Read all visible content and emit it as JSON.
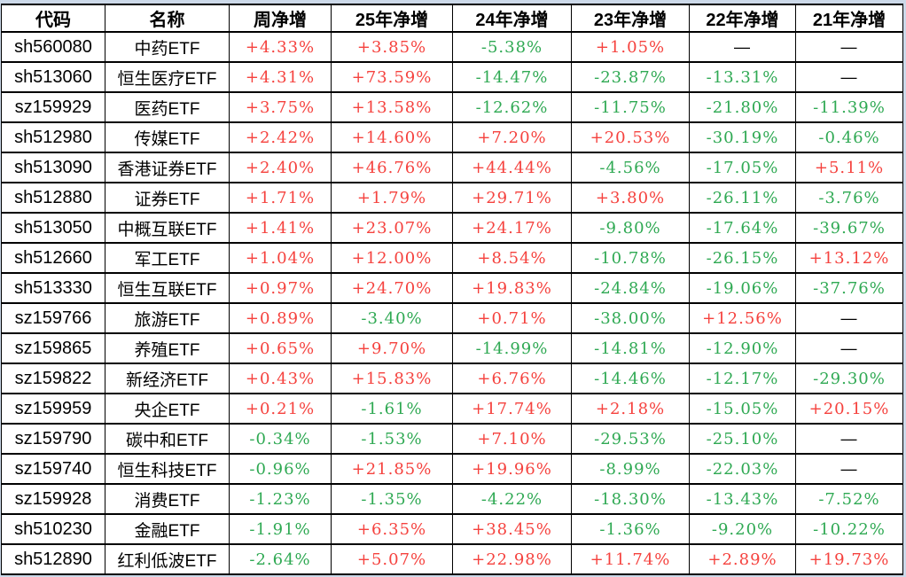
{
  "colors": {
    "positive": "#f5423e",
    "negative": "#2fa953",
    "missing_dash": "#000000",
    "border": "#000000",
    "surround": "#ccd9e9",
    "cell_background": "#ffffff"
  },
  "table": {
    "headers": [
      "代码",
      "名称",
      "周净增",
      "25年净增",
      "24年净增",
      "23年净增",
      "22年净增",
      "21年净增"
    ],
    "missing_symbol": "—",
    "rows": [
      {
        "code": "sh560080",
        "name": "中药ETF",
        "values": [
          "+4.33%",
          "+3.85%",
          "-5.38%",
          "+1.05%",
          "—",
          "—"
        ]
      },
      {
        "code": "sh513060",
        "name": "恒生医疗ETF",
        "values": [
          "+4.31%",
          "+73.59%",
          "-14.47%",
          "-23.87%",
          "-13.31%",
          "—"
        ]
      },
      {
        "code": "sz159929",
        "name": "医药ETF",
        "values": [
          "+3.75%",
          "+13.58%",
          "-12.62%",
          "-11.75%",
          "-21.80%",
          "-11.39%"
        ]
      },
      {
        "code": "sh512980",
        "name": "传媒ETF",
        "values": [
          "+2.42%",
          "+14.60%",
          "+7.20%",
          "+20.53%",
          "-30.19%",
          "-0.46%"
        ]
      },
      {
        "code": "sh513090",
        "name": "香港证券ETF",
        "values": [
          "+2.40%",
          "+46.76%",
          "+44.44%",
          "-4.56%",
          "-17.05%",
          "+5.11%"
        ]
      },
      {
        "code": "sh512880",
        "name": "证券ETF",
        "values": [
          "+1.71%",
          "+1.79%",
          "+29.71%",
          "+3.80%",
          "-26.11%",
          "-3.76%"
        ]
      },
      {
        "code": "sh513050",
        "name": "中概互联ETF",
        "values": [
          "+1.41%",
          "+23.07%",
          "+24.17%",
          "-9.80%",
          "-17.64%",
          "-39.67%"
        ]
      },
      {
        "code": "sh512660",
        "name": "军工ETF",
        "values": [
          "+1.04%",
          "+12.00%",
          "+8.54%",
          "-10.78%",
          "-26.15%",
          "+13.12%"
        ]
      },
      {
        "code": "sh513330",
        "name": "恒生互联ETF",
        "values": [
          "+0.97%",
          "+24.70%",
          "+19.83%",
          "-24.84%",
          "-19.06%",
          "-37.76%"
        ]
      },
      {
        "code": "sz159766",
        "name": "旅游ETF",
        "values": [
          "+0.89%",
          "-3.40%",
          "+0.71%",
          "-38.00%",
          "+12.56%",
          "—"
        ]
      },
      {
        "code": "sz159865",
        "name": "养殖ETF",
        "values": [
          "+0.65%",
          "+9.70%",
          "-14.99%",
          "-14.81%",
          "-12.90%",
          "—"
        ]
      },
      {
        "code": "sz159822",
        "name": "新经济ETF",
        "values": [
          "+0.43%",
          "+15.83%",
          "+6.76%",
          "-14.46%",
          "-12.17%",
          "-29.30%"
        ]
      },
      {
        "code": "sz159959",
        "name": "央企ETF",
        "values": [
          "+0.21%",
          "-1.61%",
          "+17.74%",
          "+2.18%",
          "-15.05%",
          "+20.15%"
        ]
      },
      {
        "code": "sz159790",
        "name": "碳中和ETF",
        "values": [
          "-0.34%",
          "-1.53%",
          "+7.10%",
          "-29.53%",
          "-25.10%",
          "—"
        ]
      },
      {
        "code": "sz159740",
        "name": "恒生科技ETF",
        "values": [
          "-0.96%",
          "+21.85%",
          "+19.96%",
          "-8.99%",
          "-22.03%",
          "—"
        ]
      },
      {
        "code": "sz159928",
        "name": "消费ETF",
        "values": [
          "-1.23%",
          "-1.35%",
          "-4.22%",
          "-18.30%",
          "-13.43%",
          "-7.52%"
        ]
      },
      {
        "code": "sh510230",
        "name": "金融ETF",
        "values": [
          "-1.91%",
          "+6.35%",
          "+38.45%",
          "-1.36%",
          "-9.20%",
          "-10.22%"
        ]
      },
      {
        "code": "sh512890",
        "name": "红利低波ETF",
        "values": [
          "-2.64%",
          "+5.07%",
          "+22.98%",
          "+11.74%",
          "+2.89%",
          "+19.73%"
        ]
      }
    ]
  }
}
